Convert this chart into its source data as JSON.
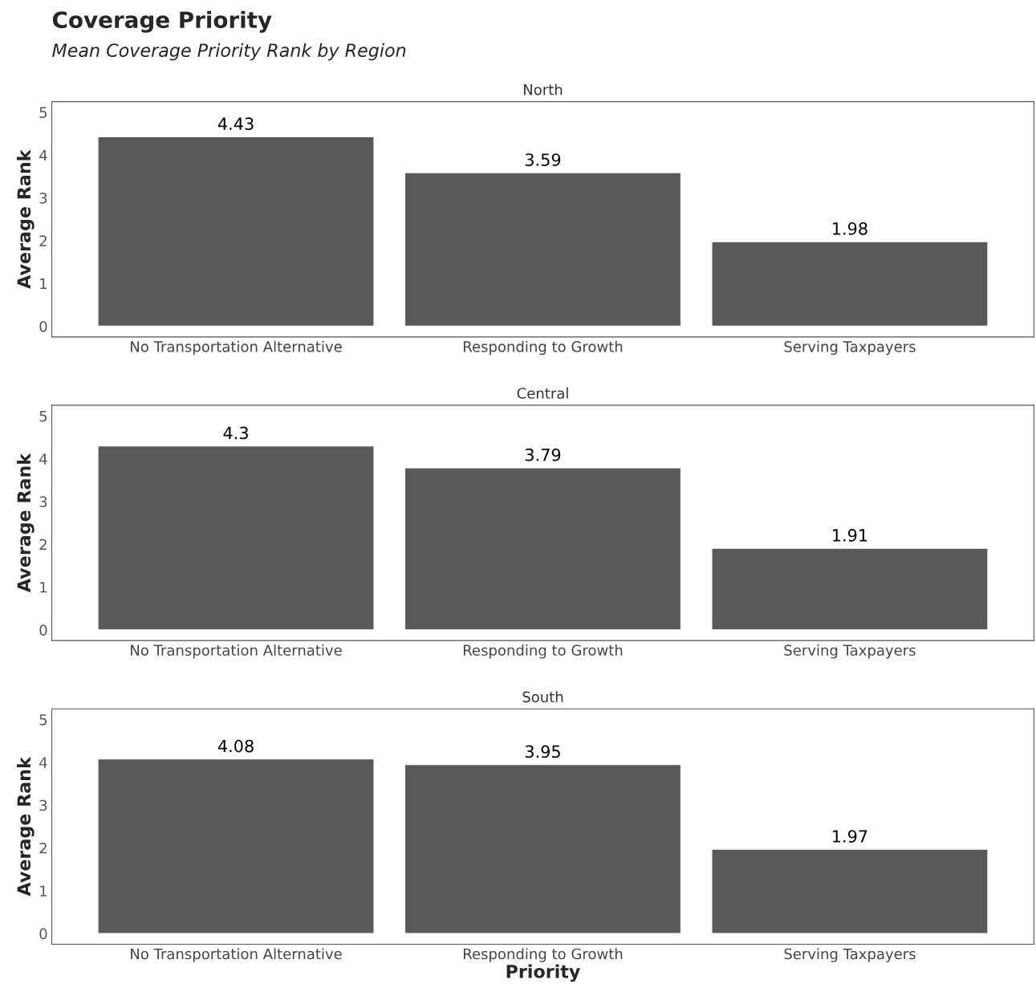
{
  "chart_data": [
    {
      "type": "bar",
      "title": "Coverage Priority",
      "subtitle": "Mean Coverage Priority Rank by Region",
      "annotations": [
        "North"
      ],
      "ylabel": "Average Rank",
      "categories": [
        "No Transportation Alternative",
        "Responding to Growth",
        "Serving Taxpayers"
      ],
      "values": [
        4.43,
        3.59,
        1.98
      ],
      "color": "#595959",
      "data_labels": true,
      "ylim": [
        -0.25,
        5.25
      ],
      "yticks": [
        0,
        1,
        2,
        3,
        4,
        5
      ],
      "grid": false
    },
    {
      "type": "bar",
      "annotations": [
        "Central"
      ],
      "ylabel": "Average Rank",
      "categories": [
        "No Transportation Alternative",
        "Responding to Growth",
        "Serving Taxpayers"
      ],
      "values": [
        4.3,
        3.79,
        1.91
      ],
      "color": "#595959",
      "data_labels": true,
      "ylim": [
        -0.25,
        5.25
      ],
      "yticks": [
        0,
        1,
        2,
        3,
        4,
        5
      ],
      "grid": false
    },
    {
      "type": "bar",
      "annotations": [
        "South"
      ],
      "ylabel": "Average Rank",
      "xlabel": "Priority",
      "categories": [
        "No Transportation Alternative",
        "Responding to Growth",
        "Serving Taxpayers"
      ],
      "values": [
        4.08,
        3.95,
        1.97
      ],
      "color": "#595959",
      "data_labels": true,
      "ylim": [
        -0.25,
        5.25
      ],
      "yticks": [
        0,
        1,
        2,
        3,
        4,
        5
      ],
      "grid": false
    }
  ]
}
